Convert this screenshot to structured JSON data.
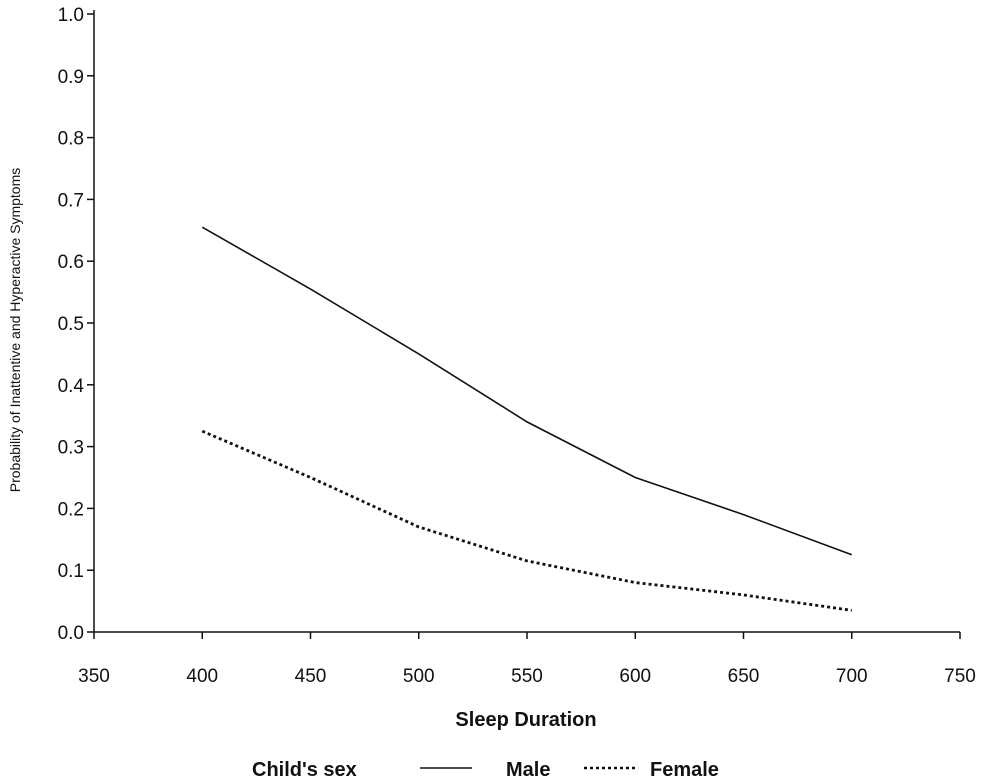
{
  "chart_data": {
    "type": "line",
    "title": "",
    "xlabel": "Sleep Duration",
    "ylabel": "Probability of Inattentive and Hyperactive Symptoms",
    "xlim": [
      350,
      750
    ],
    "ylim": [
      0.0,
      1.0
    ],
    "x_ticks": [
      "350",
      "400",
      "450",
      "500",
      "550",
      "600",
      "650",
      "700",
      "750"
    ],
    "y_ticks": [
      "0.0",
      "0.1",
      "0.2",
      "0.3",
      "0.4",
      "0.5",
      "0.6",
      "0.7",
      "0.8",
      "0.9",
      "1.0"
    ],
    "grid": false,
    "legend": {
      "title": "Child's sex",
      "placement": "bottom",
      "entries": [
        "Male",
        "Female"
      ]
    },
    "series": [
      {
        "name": "Male",
        "line_style": "solid",
        "color": "#111111",
        "x": [
          400,
          450,
          500,
          550,
          600,
          650,
          700
        ],
        "y": [
          0.655,
          0.555,
          0.45,
          0.34,
          0.25,
          0.19,
          0.125
        ]
      },
      {
        "name": "Female",
        "line_style": "dotted",
        "color": "#111111",
        "x": [
          400,
          450,
          500,
          550,
          600,
          650,
          700
        ],
        "y": [
          0.325,
          0.25,
          0.17,
          0.115,
          0.08,
          0.06,
          0.035
        ]
      }
    ]
  }
}
